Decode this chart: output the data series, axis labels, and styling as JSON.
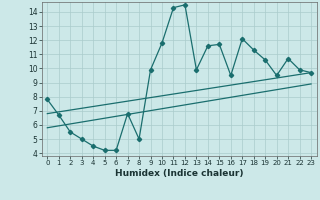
{
  "title": "",
  "xlabel": "Humidex (Indice chaleur)",
  "bg_color": "#cce8e8",
  "grid_color": "#aacccc",
  "line_color": "#1a6e6e",
  "xlim": [
    -0.5,
    23.5
  ],
  "ylim": [
    3.8,
    14.7
  ],
  "yticks": [
    4,
    5,
    6,
    7,
    8,
    9,
    10,
    11,
    12,
    13,
    14
  ],
  "xticks": [
    0,
    1,
    2,
    3,
    4,
    5,
    6,
    7,
    8,
    9,
    10,
    11,
    12,
    13,
    14,
    15,
    16,
    17,
    18,
    19,
    20,
    21,
    22,
    23
  ],
  "data_x": [
    0,
    1,
    2,
    3,
    4,
    5,
    6,
    7,
    8,
    9,
    10,
    11,
    12,
    13,
    14,
    15,
    16,
    17,
    18,
    19,
    20,
    21,
    22,
    23
  ],
  "data_y": [
    7.8,
    6.7,
    5.5,
    5.0,
    4.5,
    4.2,
    4.2,
    6.8,
    5.0,
    9.9,
    11.8,
    14.3,
    14.5,
    9.9,
    11.6,
    11.7,
    9.5,
    12.1,
    11.3,
    10.6,
    9.5,
    10.7,
    9.9,
    9.7
  ],
  "trend1_x": [
    0,
    23
  ],
  "trend1_y": [
    6.8,
    9.7
  ],
  "trend2_x": [
    0,
    23
  ],
  "trend2_y": [
    5.8,
    8.9
  ]
}
